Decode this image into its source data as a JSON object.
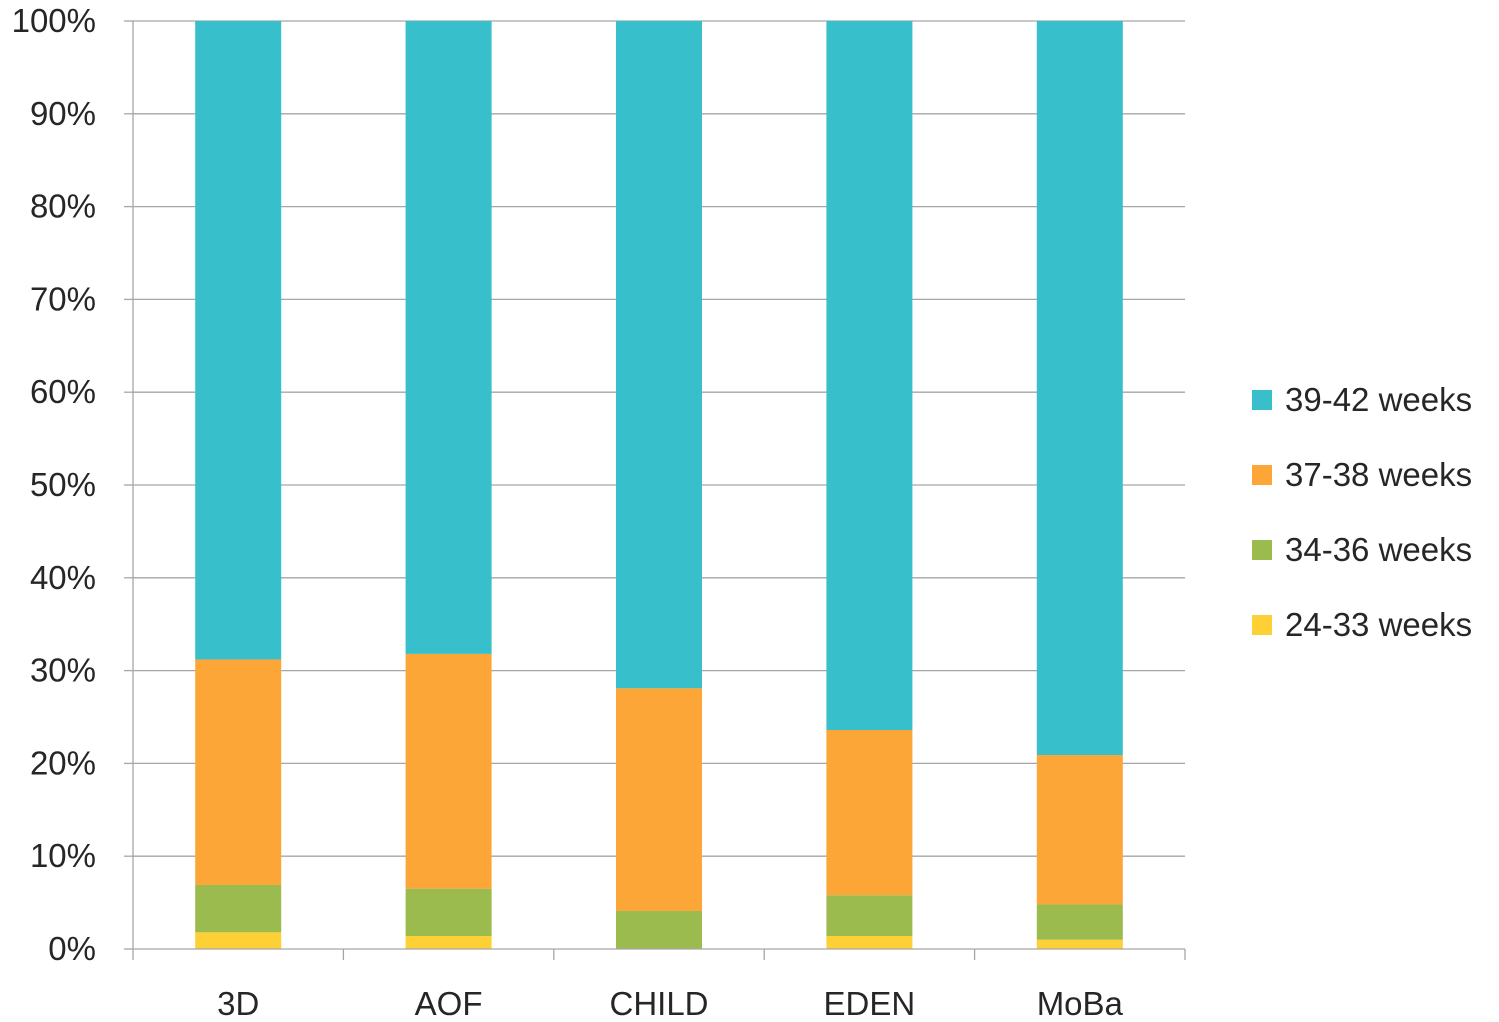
{
  "chart_data": {
    "type": "bar",
    "stacked": true,
    "normalized": true,
    "categories": [
      "3D",
      "AOF",
      "CHILD",
      "EDEN",
      "MoBa"
    ],
    "series": [
      {
        "name": "24-33 weeks",
        "color": "#FDD035",
        "values": [
          1.8,
          1.4,
          0.0,
          1.4,
          1.0
        ]
      },
      {
        "name": "34-36 weeks",
        "color": "#9BBB4F",
        "values": [
          5.1,
          5.1,
          4.1,
          4.4,
          3.8
        ]
      },
      {
        "name": "37-38 weeks",
        "color": "#FBA637",
        "values": [
          24.3,
          25.3,
          24.0,
          17.8,
          16.1
        ]
      },
      {
        "name": "39-42 weeks",
        "color": "#38BFCC",
        "values": [
          68.8,
          68.2,
          71.9,
          76.4,
          79.1
        ]
      }
    ],
    "ylim": [
      0,
      100
    ],
    "yticks": [
      "0%",
      "10%",
      "20%",
      "30%",
      "40%",
      "50%",
      "60%",
      "70%",
      "80%",
      "90%",
      "100%"
    ],
    "grid": true,
    "legend_position": "right",
    "legend_order": [
      "39-42 weeks",
      "37-38 weeks",
      "34-36 weeks",
      "24-33 weeks"
    ],
    "title": "",
    "xlabel": "",
    "ylabel": ""
  }
}
